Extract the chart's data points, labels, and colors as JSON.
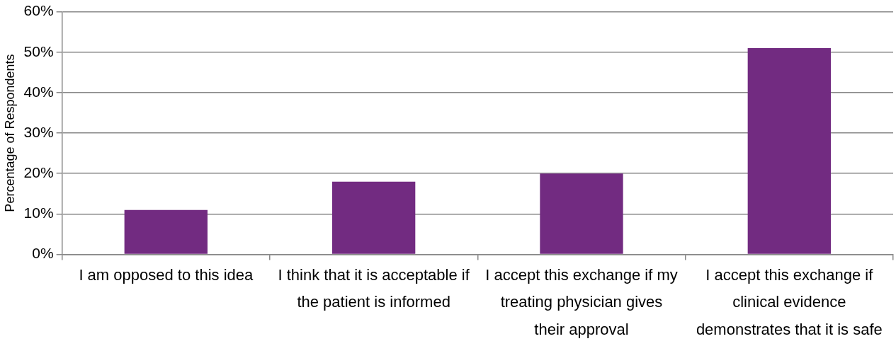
{
  "chart_data": {
    "type": "bar",
    "ylabel": "Percentage of Respondents",
    "categories": [
      "I am opposed to this idea",
      "I think that it is acceptable if the patient is informed",
      "I accept this exchange if my treating physician gives their approval",
      "I accept this exchange if clinical evidence demonstrates that it is safe"
    ],
    "values": [
      11,
      18,
      20,
      51
    ],
    "color": "#722b81",
    "ylim": [
      0,
      60
    ],
    "yticks": [
      {
        "value": 0,
        "label": "0%"
      },
      {
        "value": 10,
        "label": "10%"
      },
      {
        "value": 20,
        "label": "20%"
      },
      {
        "value": 30,
        "label": "30%"
      },
      {
        "value": 40,
        "label": "40%"
      },
      {
        "value": 50,
        "label": "50%"
      },
      {
        "value": 60,
        "label": "60%"
      }
    ],
    "grid": "y",
    "legend": false
  }
}
